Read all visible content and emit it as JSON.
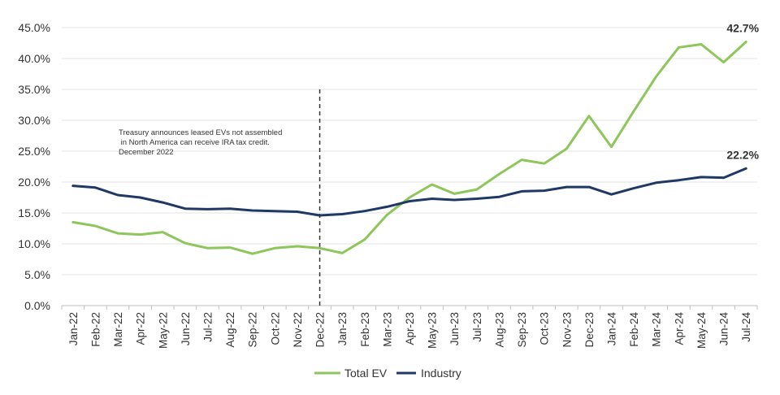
{
  "chart_data": {
    "type": "line",
    "title": "",
    "xlabel": "",
    "ylabel": "",
    "ylim": [
      0,
      45
    ],
    "y_ticks": [
      0,
      5,
      10,
      15,
      20,
      25,
      30,
      35,
      40,
      45
    ],
    "y_tick_labels": [
      "0.0%",
      "5.0%",
      "10.0%",
      "15.0%",
      "20.0%",
      "25.0%",
      "30.0%",
      "35.0%",
      "40.0%",
      "45.0%"
    ],
    "grid": "horizontal",
    "legend_position": "bottom",
    "categories": [
      "Jan-22",
      "Feb-22",
      "Mar-22",
      "Apr-22",
      "May-22",
      "Jun-22",
      "Jul-22",
      "Aug-22",
      "Sep-22",
      "Oct-22",
      "Nov-22",
      "Dec-22",
      "Jan-23",
      "Feb-23",
      "Mar-23",
      "Apr-23",
      "May-23",
      "Jun-23",
      "Jul-23",
      "Aug-23",
      "Sep-23",
      "Oct-23",
      "Nov-23",
      "Dec-23",
      "Jan-24",
      "Feb-24",
      "Mar-24",
      "Apr-24",
      "May-24",
      "Jun-24",
      "Jul-24"
    ],
    "series": [
      {
        "name": "Total EV",
        "color": "#8dc65a",
        "values": [
          13.5,
          12.9,
          11.7,
          11.5,
          11.9,
          10.1,
          9.3,
          9.4,
          8.4,
          9.3,
          9.6,
          9.3,
          8.5,
          10.7,
          14.7,
          17.5,
          19.6,
          18.1,
          18.8,
          21.3,
          23.6,
          23.0,
          25.4,
          30.7,
          25.7,
          31.5,
          37.1,
          41.8,
          42.3,
          39.4,
          42.7
        ],
        "end_label": "42.7%"
      },
      {
        "name": "Industry",
        "color": "#1f3864",
        "values": [
          19.4,
          19.1,
          17.9,
          17.5,
          16.7,
          15.7,
          15.6,
          15.7,
          15.4,
          15.3,
          15.2,
          14.6,
          14.8,
          15.3,
          16.0,
          16.9,
          17.3,
          17.1,
          17.3,
          17.6,
          18.5,
          18.6,
          19.2,
          19.2,
          18.0,
          19.0,
          19.9,
          20.3,
          20.8,
          20.7,
          22.2
        ],
        "end_label": "22.2%"
      }
    ],
    "annotation": {
      "lines": [
        "Treasury announces leased EVs not assembled",
        " in North America can receive IRA tax credit.",
        "December 2022"
      ],
      "at_category": "Dec-22"
    }
  }
}
